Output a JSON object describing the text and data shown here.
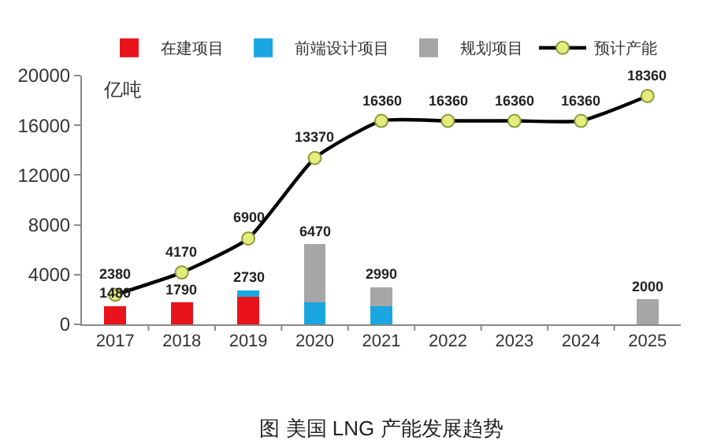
{
  "chart_data": {
    "type": "bar",
    "stacked": true,
    "title": "图 美国 LNG 产能发展趋势",
    "ylabel": "亿吨",
    "categories": [
      "2017",
      "2018",
      "2019",
      "2020",
      "2021",
      "2022",
      "2023",
      "2024",
      "2025"
    ],
    "series": [
      {
        "name": "在建项目",
        "color": "#e8131b",
        "values": [
          1480,
          1790,
          2200,
          null,
          null,
          null,
          null,
          null,
          null
        ]
      },
      {
        "name": "前端设计项目",
        "color": "#1aa6e0",
        "values": [
          null,
          null,
          530,
          1750,
          1430,
          null,
          null,
          null,
          null
        ]
      },
      {
        "name": "规划项目",
        "color": "#a6a6a6",
        "values": [
          null,
          null,
          null,
          4720,
          1560,
          null,
          null,
          null,
          2000
        ]
      },
      {
        "name": "预计产能",
        "type": "line",
        "color": "#000000",
        "marker": "circle",
        "values": [
          2380,
          4170,
          6900,
          13370,
          16360,
          16360,
          16360,
          16360,
          18360
        ],
        "value_labels": [
          "2380",
          "4170",
          "6900",
          "13370",
          "16360",
          "16360",
          "16360",
          "16360",
          "18360"
        ]
      }
    ],
    "totals": [
      "1480",
      "1790",
      "2730",
      "6470",
      "2990",
      null,
      null,
      null,
      "2000"
    ],
    "ylim": [
      0,
      20000
    ],
    "yticks": [
      0,
      4000,
      8000,
      12000,
      16000,
      20000
    ],
    "grid": false,
    "legend": "top"
  }
}
